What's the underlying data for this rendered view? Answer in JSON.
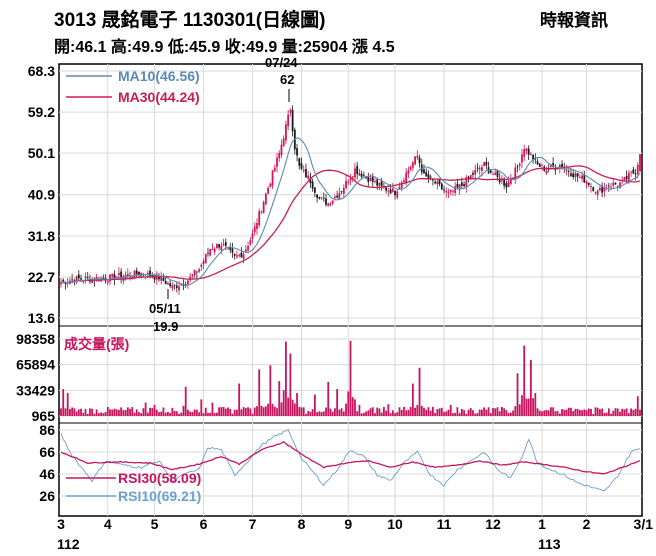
{
  "header": {
    "title": "3013  晟銘電子 1130301(日線圖)",
    "source": "時報資訊",
    "quote": "開:46.1 高:49.9 低:45.9 收:49.9 量:25904 漲 4.5"
  },
  "colors": {
    "candle_up": "#d4145a",
    "candle_down": "#1a1a1a",
    "ma10": "#5b8ab8",
    "ma30": "#c81e50",
    "volume": "#c8145f",
    "rsi30": "#c8145f",
    "rsi10": "#6a9fcf",
    "grid": "#d9d9d9"
  },
  "chart_data": [
    {
      "type": "candlestick",
      "title": "3013  晟銘電子 1130301(日線圖)",
      "y_ticks": [
        "68.3",
        "59.2",
        "50.1",
        "40.9",
        "31.8",
        "22.7",
        "13.6"
      ],
      "ylim": [
        13.6,
        68.3
      ],
      "legend": [
        {
          "name": "MA10",
          "value": "MA10(46.56)"
        },
        {
          "name": "MA30",
          "value": "MA30(44.24)"
        }
      ],
      "annotations": [
        {
          "date": "07/24",
          "value": "62"
        },
        {
          "date": "05/11",
          "value": "19.9"
        }
      ],
      "x_month_labels": [
        "3",
        "4",
        "5",
        "6",
        "7",
        "8",
        "9",
        "10",
        "11",
        "12",
        "1",
        "2",
        "3/1"
      ],
      "x_year_labels": [
        "112",
        "113"
      ],
      "anchors": [
        [
          0,
          21.5
        ],
        [
          6,
          22.2
        ],
        [
          12,
          22.3
        ],
        [
          20,
          22.4
        ],
        [
          28,
          23.0
        ],
        [
          36,
          23.5
        ],
        [
          44,
          22.6
        ],
        [
          50,
          20.5
        ],
        [
          56,
          21.5
        ],
        [
          62,
          24.5
        ],
        [
          67,
          29.0
        ],
        [
          72,
          30.0
        ],
        [
          78,
          27.0
        ],
        [
          82,
          28.0
        ],
        [
          86,
          32.0
        ],
        [
          90,
          38.0
        ],
        [
          94,
          44.0
        ],
        [
          98,
          50.0
        ],
        [
          101,
          56.0
        ],
        [
          103,
          60.0
        ],
        [
          105,
          51.5
        ],
        [
          107,
          47.0
        ],
        [
          112,
          44.0
        ],
        [
          116,
          40.0
        ],
        [
          120,
          39.0
        ],
        [
          126,
          42.0
        ],
        [
          132,
          46.5
        ],
        [
          138,
          44.5
        ],
        [
          144,
          42.5
        ],
        [
          150,
          41.5
        ],
        [
          156,
          46.5
        ],
        [
          160,
          49.5
        ],
        [
          163,
          45.0
        ],
        [
          168,
          43.5
        ],
        [
          174,
          41.0
        ],
        [
          180,
          43.0
        ],
        [
          186,
          46.0
        ],
        [
          190,
          47.5
        ],
        [
          195,
          45.0
        ],
        [
          200,
          43.0
        ],
        [
          205,
          47.0
        ],
        [
          208,
          51.5
        ],
        [
          211,
          49.5
        ],
        [
          214,
          47.5
        ],
        [
          218,
          46.5
        ],
        [
          224,
          47.5
        ],
        [
          230,
          45.5
        ],
        [
          236,
          44.0
        ],
        [
          241,
          41.5
        ],
        [
          246,
          43.0
        ],
        [
          252,
          43.5
        ],
        [
          256,
          45.5
        ],
        [
          258,
          46.0
        ],
        [
          260,
          49.9
        ]
      ],
      "ma10_last": 46.56,
      "ma30_last": 44.24
    },
    {
      "type": "bar",
      "title": "成交量(張)",
      "y_ticks": [
        "98358",
        "65894",
        "33429",
        "965"
      ],
      "ylim": [
        965,
        98358
      ],
      "spikes": [
        [
          1,
          35000
        ],
        [
          3,
          30000
        ],
        [
          38,
          18000
        ],
        [
          42,
          15000
        ],
        [
          56,
          38000
        ],
        [
          63,
          22000
        ],
        [
          68,
          18000
        ],
        [
          80,
          42000
        ],
        [
          84,
          12000
        ],
        [
          89,
          60000
        ],
        [
          94,
          65000
        ],
        [
          98,
          45000
        ],
        [
          101,
          95000
        ],
        [
          103,
          80000
        ],
        [
          106,
          30000
        ],
        [
          114,
          28000
        ],
        [
          120,
          44000
        ],
        [
          124,
          35000
        ],
        [
          130,
          96000
        ],
        [
          134,
          15000
        ],
        [
          140,
          12000
        ],
        [
          147,
          16000
        ],
        [
          152,
          12000
        ],
        [
          158,
          42000
        ],
        [
          161,
          62000
        ],
        [
          175,
          15000
        ],
        [
          178,
          12000
        ],
        [
          184,
          11000
        ],
        [
          192,
          12000
        ],
        [
          196,
          12000
        ],
        [
          205,
          55000
        ],
        [
          208,
          90000
        ],
        [
          211,
          72000
        ],
        [
          213,
          30000
        ],
        [
          220,
          12000
        ],
        [
          232,
          10000
        ],
        [
          240,
          12000
        ],
        [
          252,
          10000
        ],
        [
          259,
          25904
        ]
      ],
      "last_value": 25904
    },
    {
      "type": "line",
      "y_ticks": [
        "86",
        "66",
        "46",
        "26"
      ],
      "ylim": [
        26,
        86
      ],
      "series": [
        {
          "name": "RSI30",
          "label": "RSI30(58.09)",
          "last": 58.09,
          "points": [
            [
              0,
              66
            ],
            [
              12,
              56
            ],
            [
              25,
              57
            ],
            [
              40,
              56
            ],
            [
              50,
              50
            ],
            [
              62,
              55
            ],
            [
              72,
              62
            ],
            [
              80,
              55
            ],
            [
              90,
              68
            ],
            [
              100,
              75
            ],
            [
              108,
              64
            ],
            [
              118,
              52
            ],
            [
              128,
              56
            ],
            [
              138,
              58
            ],
            [
              148,
              52
            ],
            [
              158,
              57
            ],
            [
              168,
              52
            ],
            [
              178,
              54
            ],
            [
              188,
              58
            ],
            [
              198,
              54
            ],
            [
              208,
              57
            ],
            [
              216,
              55
            ],
            [
              226,
              52
            ],
            [
              236,
              48
            ],
            [
              244,
              46
            ],
            [
              252,
              52
            ],
            [
              260,
              58.09
            ]
          ]
        },
        {
          "name": "RSI10",
          "label": "RSI10(69.21)",
          "last": 69.21,
          "points": [
            [
              0,
              82
            ],
            [
              4,
              66
            ],
            [
              8,
              55
            ],
            [
              14,
              40
            ],
            [
              20,
              58
            ],
            [
              28,
              54
            ],
            [
              36,
              52
            ],
            [
              44,
              58
            ],
            [
              50,
              40
            ],
            [
              56,
              46
            ],
            [
              62,
              50
            ],
            [
              66,
              70
            ],
            [
              72,
              68
            ],
            [
              78,
              45
            ],
            [
              84,
              58
            ],
            [
              90,
              72
            ],
            [
              96,
              80
            ],
            [
              102,
              86
            ],
            [
              108,
              60
            ],
            [
              114,
              46
            ],
            [
              118,
              36
            ],
            [
              124,
              50
            ],
            [
              130,
              68
            ],
            [
              136,
              62
            ],
            [
              142,
              45
            ],
            [
              148,
              40
            ],
            [
              154,
              56
            ],
            [
              160,
              66
            ],
            [
              166,
              45
            ],
            [
              172,
              36
            ],
            [
              178,
              50
            ],
            [
              184,
              58
            ],
            [
              190,
              66
            ],
            [
              196,
              50
            ],
            [
              202,
              42
            ],
            [
              207,
              62
            ],
            [
              210,
              78
            ],
            [
              214,
              56
            ],
            [
              220,
              50
            ],
            [
              226,
              45
            ],
            [
              232,
              38
            ],
            [
              238,
              34
            ],
            [
              244,
              30
            ],
            [
              250,
              44
            ],
            [
              256,
              66
            ],
            [
              260,
              69.21
            ]
          ]
        }
      ]
    }
  ]
}
